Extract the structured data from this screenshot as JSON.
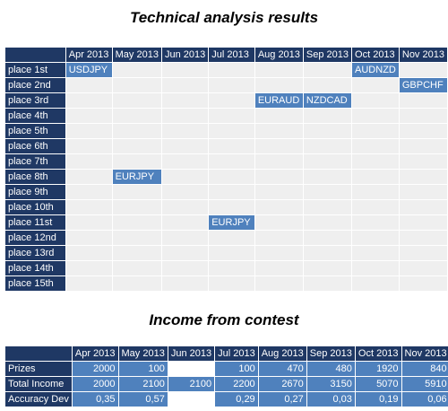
{
  "section1": {
    "title": "Technical analysis results",
    "months": [
      "Apr 2013",
      "May 2013",
      "Jun 2013",
      "Jul 2013",
      "Aug 2013",
      "Sep 2013",
      "Oct 2013",
      "Nov 2013"
    ],
    "rows": [
      {
        "label": "place 1st",
        "cells": [
          "USDJPY",
          "",
          "",
          "",
          "",
          "",
          "AUDNZD",
          ""
        ]
      },
      {
        "label": "place 2nd",
        "cells": [
          "",
          "",
          "",
          "",
          "",
          "",
          "",
          "GBPCHF"
        ]
      },
      {
        "label": "place 3rd",
        "cells": [
          "",
          "",
          "",
          "",
          "EURAUD",
          "NZDCAD",
          "",
          ""
        ]
      },
      {
        "label": "place 4th",
        "cells": [
          "",
          "",
          "",
          "",
          "",
          "",
          "",
          ""
        ]
      },
      {
        "label": "place 5th",
        "cells": [
          "",
          "",
          "",
          "",
          "",
          "",
          "",
          ""
        ]
      },
      {
        "label": "place 6th",
        "cells": [
          "",
          "",
          "",
          "",
          "",
          "",
          "",
          ""
        ]
      },
      {
        "label": "place 7th",
        "cells": [
          "",
          "",
          "",
          "",
          "",
          "",
          "",
          ""
        ]
      },
      {
        "label": "place 8th",
        "cells": [
          "",
          "EURJPY",
          "",
          "",
          "",
          "",
          "",
          ""
        ]
      },
      {
        "label": "place 9th",
        "cells": [
          "",
          "",
          "",
          "",
          "",
          "",
          "",
          ""
        ]
      },
      {
        "label": "place 10th",
        "cells": [
          "",
          "",
          "",
          "",
          "",
          "",
          "",
          ""
        ]
      },
      {
        "label": "place 11st",
        "cells": [
          "",
          "",
          "",
          "EURJPY",
          "",
          "",
          "",
          ""
        ]
      },
      {
        "label": "place 12nd",
        "cells": [
          "",
          "",
          "",
          "",
          "",
          "",
          "",
          ""
        ]
      },
      {
        "label": "place 13rd",
        "cells": [
          "",
          "",
          "",
          "",
          "",
          "",
          "",
          ""
        ]
      },
      {
        "label": "place 14th",
        "cells": [
          "",
          "",
          "",
          "",
          "",
          "",
          "",
          ""
        ]
      },
      {
        "label": "place 15th",
        "cells": [
          "",
          "",
          "",
          "",
          "",
          "",
          "",
          ""
        ]
      }
    ]
  },
  "section2": {
    "title": "Income from contest",
    "months": [
      "Apr 2013",
      "May 2013",
      "Jun 2013",
      "Jul 2013",
      "Aug 2013",
      "Sep 2013",
      "Oct 2013",
      "Nov 2013"
    ],
    "rows": [
      {
        "label": "Prizes",
        "cells": [
          "2000",
          "100",
          "",
          "100",
          "470",
          "480",
          "1920",
          "840"
        ]
      },
      {
        "label": "Total Income",
        "cells": [
          "2000",
          "2100",
          "2100",
          "2200",
          "2670",
          "3150",
          "5070",
          "5910"
        ]
      },
      {
        "label": "Accuracy Dev",
        "cells": [
          "0,35",
          "0,57",
          "",
          "0,29",
          "0,27",
          "0,03",
          "0,19",
          "0,06"
        ]
      }
    ]
  }
}
